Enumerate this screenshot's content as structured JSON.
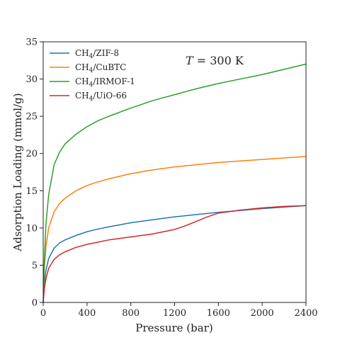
{
  "chart_data": {
    "type": "line",
    "xlabel": "Pressure (bar)",
    "ylabel": "Adsorption Loading (mmol/g)",
    "xlim": [
      0,
      2400
    ],
    "ylim": [
      0,
      35
    ],
    "xticks": [
      0,
      400,
      800,
      1200,
      1600,
      2000,
      2400
    ],
    "yticks": [
      0,
      5,
      10,
      15,
      20,
      25,
      30,
      35
    ],
    "grid": false,
    "legend_placement": "top-left",
    "annotation": {
      "var": "T",
      "text": " = 300 K"
    },
    "series": [
      {
        "name": "CH4/ZIF-8",
        "label_parts": [
          "CH",
          "4",
          "/ZIF-8"
        ],
        "color": "#1f77b4",
        "x": [
          0,
          10,
          25,
          50,
          100,
          150,
          200,
          300,
          400,
          500,
          600,
          800,
          1000,
          1200,
          1400,
          1600,
          1800,
          2000,
          2200,
          2400
        ],
        "y": [
          0,
          2.6,
          4.3,
          5.9,
          7.3,
          8.0,
          8.4,
          9.0,
          9.5,
          9.85,
          10.15,
          10.7,
          11.1,
          11.5,
          11.8,
          12.1,
          12.35,
          12.6,
          12.8,
          13.0
        ]
      },
      {
        "name": "CH4/CuBTC",
        "label_parts": [
          "CH",
          "4",
          "/CuBTC"
        ],
        "color": "#ff7f0e",
        "x": [
          0,
          10,
          25,
          50,
          100,
          150,
          200,
          300,
          400,
          500,
          600,
          800,
          1000,
          1200,
          1400,
          1600,
          1800,
          2000,
          2200,
          2400
        ],
        "y": [
          0,
          4.5,
          7.5,
          10.0,
          12.2,
          13.3,
          14.0,
          15.0,
          15.7,
          16.2,
          16.6,
          17.3,
          17.8,
          18.2,
          18.5,
          18.8,
          19.0,
          19.2,
          19.4,
          19.6
        ]
      },
      {
        "name": "CH4/IRMOF-1",
        "label_parts": [
          "CH",
          "4",
          "/IRMOF-1"
        ],
        "color": "#2ca02c",
        "x": [
          0,
          10,
          25,
          50,
          100,
          150,
          200,
          300,
          400,
          500,
          600,
          800,
          1000,
          1200,
          1400,
          1600,
          1800,
          2000,
          2200,
          2400
        ],
        "y": [
          0,
          5.5,
          10.5,
          14.5,
          18.5,
          20.2,
          21.3,
          22.6,
          23.6,
          24.4,
          25.0,
          26.1,
          27.1,
          27.9,
          28.7,
          29.4,
          30.0,
          30.6,
          31.3,
          32.0
        ]
      },
      {
        "name": "CH4/UiO-66",
        "label_parts": [
          "CH",
          "4",
          "/UiO-66"
        ],
        "color": "#d62728",
        "x": [
          0,
          10,
          25,
          50,
          100,
          150,
          200,
          300,
          400,
          500,
          600,
          800,
          1000,
          1200,
          1300,
          1400,
          1500,
          1600,
          1800,
          2000,
          2200,
          2400
        ],
        "y": [
          0,
          1.8,
          3.2,
          4.6,
          5.8,
          6.4,
          6.8,
          7.4,
          7.8,
          8.1,
          8.4,
          8.8,
          9.2,
          9.8,
          10.3,
          10.9,
          11.5,
          12.0,
          12.4,
          12.7,
          12.9,
          13.0
        ]
      }
    ]
  }
}
